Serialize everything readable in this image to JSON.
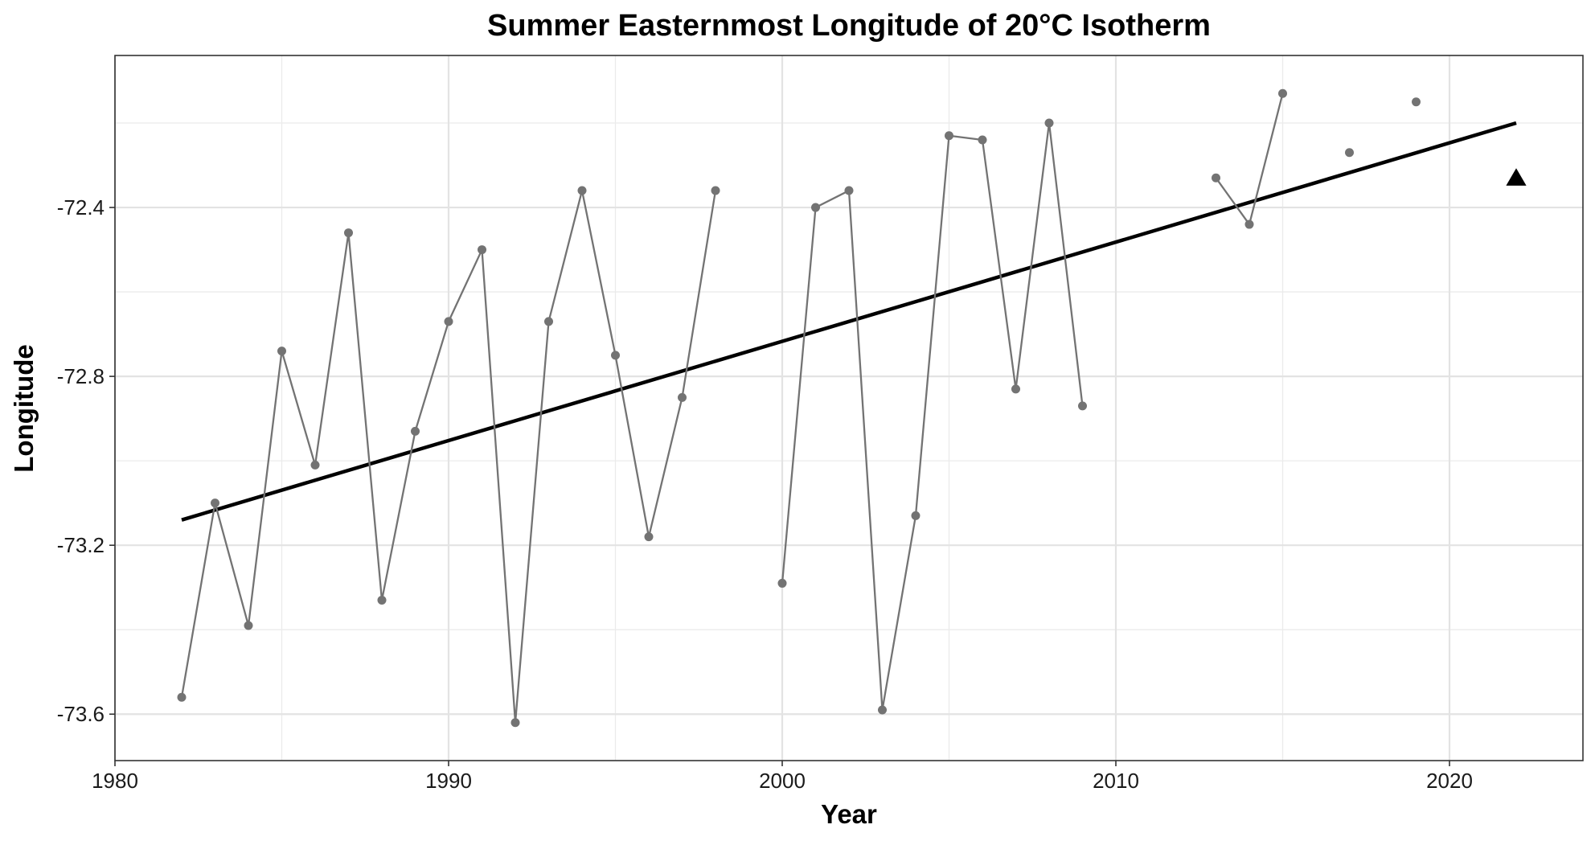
{
  "chart_data": {
    "type": "line",
    "title": "Summer Easternmost Longitude of 20°C Isotherm",
    "xlabel": "Year",
    "ylabel": "Longitude",
    "xlim": [
      1980,
      2024
    ],
    "ylim": [
      -73.71,
      -72.04
    ],
    "x_ticks": [
      1980,
      1990,
      2000,
      2010,
      2020
    ],
    "x_minor_ticks": [
      1985,
      1995,
      2005,
      2015
    ],
    "y_ticks": [
      -73.6,
      -73.2,
      -72.8,
      -72.4
    ],
    "y_tick_labels": [
      "-73.6",
      "-73.2",
      "-72.8",
      "-72.4"
    ],
    "y_minor_ticks": [
      -73.4,
      -73.0,
      -72.6,
      -72.2
    ],
    "grid": true,
    "series": [
      {
        "kind": "observed",
        "color": "#737373",
        "segments": [
          [
            {
              "x": 1982,
              "y": -73.56
            },
            {
              "x": 1983,
              "y": -73.1
            },
            {
              "x": 1984,
              "y": -73.39
            },
            {
              "x": 1985,
              "y": -72.74
            },
            {
              "x": 1986,
              "y": -73.01
            },
            {
              "x": 1987,
              "y": -72.46
            },
            {
              "x": 1988,
              "y": -73.33
            },
            {
              "x": 1989,
              "y": -72.93
            },
            {
              "x": 1990,
              "y": -72.67
            },
            {
              "x": 1991,
              "y": -72.5
            },
            {
              "x": 1992,
              "y": -73.62
            },
            {
              "x": 1993,
              "y": -72.67
            },
            {
              "x": 1994,
              "y": -72.36
            },
            {
              "x": 1995,
              "y": -72.75
            },
            {
              "x": 1996,
              "y": -73.18
            },
            {
              "x": 1997,
              "y": -72.85
            },
            {
              "x": 1998,
              "y": -72.36
            }
          ],
          [
            {
              "x": 2000,
              "y": -73.29
            },
            {
              "x": 2001,
              "y": -72.4
            },
            {
              "x": 2002,
              "y": -72.36
            },
            {
              "x": 2003,
              "y": -73.59
            },
            {
              "x": 2004,
              "y": -73.13
            },
            {
              "x": 2005,
              "y": -72.23
            },
            {
              "x": 2006,
              "y": -72.24
            },
            {
              "x": 2007,
              "y": -72.83
            },
            {
              "x": 2008,
              "y": -72.2
            },
            {
              "x": 2009,
              "y": -72.87
            }
          ],
          [
            {
              "x": 2013,
              "y": -72.33
            },
            {
              "x": 2014,
              "y": -72.44
            },
            {
              "x": 2015,
              "y": -72.13
            }
          ],
          [
            {
              "x": 2017,
              "y": -72.27
            }
          ],
          [
            {
              "x": 2019,
              "y": -72.15
            }
          ]
        ]
      },
      {
        "kind": "trend",
        "color": "#000000",
        "points": [
          {
            "x": 1982,
            "y": -73.14
          },
          {
            "x": 2022,
            "y": -72.2
          }
        ]
      },
      {
        "kind": "marker-triangle",
        "color": "#000000",
        "points": [
          {
            "x": 2022,
            "y": -72.33
          }
        ]
      }
    ]
  }
}
